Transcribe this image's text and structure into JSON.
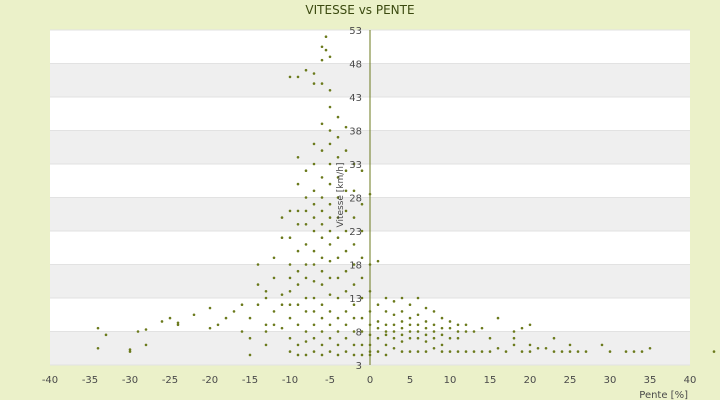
{
  "chart_data": {
    "type": "scatter",
    "title": "VITESSE vs PENTE",
    "xlabel": "Pente [%]",
    "ylabel": "Vitesse [km/h]",
    "xlim": [
      -40,
      40
    ],
    "ylim": [
      3,
      53
    ],
    "xticks": [
      "-40",
      "-35",
      "-30",
      "-25",
      "-20",
      "-15",
      "-10",
      "-5",
      "0",
      "5",
      "10",
      "15",
      "20",
      "25",
      "30",
      "35",
      "40"
    ],
    "yticks": [
      "3",
      "8",
      "13",
      "18",
      "23",
      "28",
      "33",
      "38",
      "43",
      "48",
      "53"
    ],
    "grid": "horizontal bands",
    "colors": {
      "background": "#ebf1c9",
      "band": "#efefef",
      "plot": "#ffffff",
      "point": "#6b7a1c",
      "axis": "#6b7a1c"
    },
    "series": [
      {
        "points": [
          [
            -34,
            8.5
          ],
          [
            -34,
            5.5
          ],
          [
            -33,
            7.5
          ],
          [
            -30,
            5.3
          ],
          [
            -30,
            5.0
          ],
          [
            -29,
            8.0
          ],
          [
            -28,
            6.0
          ],
          [
            -28,
            8.3
          ],
          [
            -26,
            9.5
          ],
          [
            -25,
            10.0
          ],
          [
            -24,
            9.0
          ],
          [
            -24,
            9.3
          ],
          [
            -22,
            10.5
          ],
          [
            -20,
            11.5
          ],
          [
            -20,
            8.5
          ],
          [
            -19,
            9.0
          ],
          [
            -18,
            10.0
          ],
          [
            -17,
            11.0
          ],
          [
            -16,
            12.0
          ],
          [
            -16,
            8.0
          ],
          [
            -15,
            7.0
          ],
          [
            -15,
            10.0
          ],
          [
            -15,
            4.5
          ],
          [
            -14,
            12.0
          ],
          [
            -14,
            15.0
          ],
          [
            -14,
            18.0
          ],
          [
            -13,
            14.0
          ],
          [
            -13,
            13.0
          ],
          [
            -13,
            6.0
          ],
          [
            -13,
            9.0
          ],
          [
            -13,
            8.0
          ],
          [
            -12,
            9.0
          ],
          [
            -12,
            11.0
          ],
          [
            -12,
            16.0
          ],
          [
            -12,
            19.0
          ],
          [
            -11,
            13.5
          ],
          [
            -11,
            8.5
          ],
          [
            -11,
            12.0
          ],
          [
            -11,
            22.0
          ],
          [
            -11,
            25.0
          ],
          [
            -10,
            26.0
          ],
          [
            -10,
            22.0
          ],
          [
            -10,
            18.0
          ],
          [
            -10,
            16.0
          ],
          [
            -10,
            14.0
          ],
          [
            -10,
            12.0
          ],
          [
            -10,
            10.0
          ],
          [
            -10,
            7.0
          ],
          [
            -10,
            5.0
          ],
          [
            -10,
            46.0
          ],
          [
            -9,
            46.0
          ],
          [
            -9,
            34.0
          ],
          [
            -9,
            30.0
          ],
          [
            -9,
            26.0
          ],
          [
            -9,
            24.0
          ],
          [
            -9,
            20.0
          ],
          [
            -9,
            17.0
          ],
          [
            -9,
            15.0
          ],
          [
            -9,
            12.0
          ],
          [
            -9,
            9.0
          ],
          [
            -9,
            6.0
          ],
          [
            -9,
            4.5
          ],
          [
            -8,
            47.0
          ],
          [
            -8,
            32.0
          ],
          [
            -8,
            28.0
          ],
          [
            -8,
            26.0
          ],
          [
            -8,
            24.0
          ],
          [
            -8,
            21.0
          ],
          [
            -8,
            18.0
          ],
          [
            -8,
            16.0
          ],
          [
            -8,
            13.0
          ],
          [
            -8,
            11.0
          ],
          [
            -8,
            8.0
          ],
          [
            -8,
            6.5
          ],
          [
            -8,
            4.5
          ],
          [
            -7,
            46.5
          ],
          [
            -7,
            45.0
          ],
          [
            -7,
            36.0
          ],
          [
            -7,
            33.0
          ],
          [
            -7,
            29.0
          ],
          [
            -7,
            27.0
          ],
          [
            -7,
            25.0
          ],
          [
            -7,
            23.0
          ],
          [
            -7,
            20.0
          ],
          [
            -7,
            18.0
          ],
          [
            -7,
            15.5
          ],
          [
            -7,
            13.0
          ],
          [
            -7,
            11.0
          ],
          [
            -7,
            9.0
          ],
          [
            -7,
            7.0
          ],
          [
            -7,
            5.0
          ],
          [
            -6,
            50.5
          ],
          [
            -6,
            48.5
          ],
          [
            -6,
            45.0
          ],
          [
            -6,
            39.0
          ],
          [
            -6,
            35.0
          ],
          [
            -6,
            31.0
          ],
          [
            -6,
            28.0
          ],
          [
            -6,
            26.0
          ],
          [
            -6,
            24.0
          ],
          [
            -6,
            22.0
          ],
          [
            -6,
            19.0
          ],
          [
            -6,
            17.0
          ],
          [
            -6,
            15.0
          ],
          [
            -6,
            12.0
          ],
          [
            -6,
            10.0
          ],
          [
            -6,
            8.0
          ],
          [
            -6,
            6.0
          ],
          [
            -6,
            4.5
          ],
          [
            -5.5,
            52.0
          ],
          [
            -5.5,
            50.0
          ],
          [
            -5,
            49.0
          ],
          [
            -5,
            44.0
          ],
          [
            -5,
            41.5
          ],
          [
            -5,
            38.0
          ],
          [
            -5,
            36.0
          ],
          [
            -5,
            33.0
          ],
          [
            -5,
            30.0
          ],
          [
            -5,
            27.0
          ],
          [
            -5,
            25.0
          ],
          [
            -5,
            23.0
          ],
          [
            -5,
            21.0
          ],
          [
            -5,
            18.5
          ],
          [
            -5,
            16.0
          ],
          [
            -5,
            13.5
          ],
          [
            -5,
            11.0
          ],
          [
            -5,
            9.0
          ],
          [
            -5,
            7.0
          ],
          [
            -5,
            5.0
          ],
          [
            -4,
            40.0
          ],
          [
            -4,
            37.0
          ],
          [
            -4,
            34.0
          ],
          [
            -4,
            31.0
          ],
          [
            -4,
            28.0
          ],
          [
            -4,
            25.0
          ],
          [
            -4,
            22.0
          ],
          [
            -4,
            19.0
          ],
          [
            -4,
            16.0
          ],
          [
            -4,
            13.0
          ],
          [
            -4,
            10.0
          ],
          [
            -4,
            8.0
          ],
          [
            -4,
            6.0
          ],
          [
            -4,
            4.5
          ],
          [
            -3,
            38.5
          ],
          [
            -3,
            35.0
          ],
          [
            -3,
            32.0
          ],
          [
            -3,
            29.0
          ],
          [
            -3,
            26.0
          ],
          [
            -3,
            23.0
          ],
          [
            -3,
            20.0
          ],
          [
            -3,
            17.0
          ],
          [
            -3,
            14.0
          ],
          [
            -3,
            11.0
          ],
          [
            -3,
            9.0
          ],
          [
            -3,
            7.0
          ],
          [
            -3,
            5.0
          ],
          [
            -2,
            33.0
          ],
          [
            -2,
            29.0
          ],
          [
            -2,
            25.0
          ],
          [
            -2,
            21.0
          ],
          [
            -2,
            18.0
          ],
          [
            -2,
            15.0
          ],
          [
            -2,
            12.0
          ],
          [
            -2,
            10.0
          ],
          [
            -2,
            8.0
          ],
          [
            -2,
            6.0
          ],
          [
            -2,
            4.5
          ],
          [
            -1,
            32.0
          ],
          [
            -1,
            27.0
          ],
          [
            -1,
            23.0
          ],
          [
            -1,
            19.0
          ],
          [
            -1,
            16.0
          ],
          [
            -1,
            13.0
          ],
          [
            -1,
            10.0
          ],
          [
            -1,
            8.0
          ],
          [
            -1,
            6.0
          ],
          [
            -1,
            4.5
          ],
          [
            0,
            28.5
          ],
          [
            0,
            18.0
          ],
          [
            0,
            14.0
          ],
          [
            0,
            11.0
          ],
          [
            0,
            9.0
          ],
          [
            0,
            7.5
          ],
          [
            0,
            6.0
          ],
          [
            0,
            5.0
          ],
          [
            0,
            4.5
          ],
          [
            1,
            18.5
          ],
          [
            1,
            12.0
          ],
          [
            1,
            9.5
          ],
          [
            1,
            8.5
          ],
          [
            1,
            7.0
          ],
          [
            1,
            5.0
          ],
          [
            2,
            13.0
          ],
          [
            2,
            11.0
          ],
          [
            2,
            9.0
          ],
          [
            2,
            8.0
          ],
          [
            2,
            7.5
          ],
          [
            2,
            6.0
          ],
          [
            2,
            4.5
          ],
          [
            3,
            12.5
          ],
          [
            3,
            10.5
          ],
          [
            3,
            9.0
          ],
          [
            3,
            8.0
          ],
          [
            3,
            7.0
          ],
          [
            3,
            5.5
          ],
          [
            4,
            13.0
          ],
          [
            4,
            11.0
          ],
          [
            4,
            9.5
          ],
          [
            4,
            8.5
          ],
          [
            4,
            7.5
          ],
          [
            4,
            6.5
          ],
          [
            4,
            5.0
          ],
          [
            5,
            12.0
          ],
          [
            5,
            10.0
          ],
          [
            5,
            9.0
          ],
          [
            5,
            8.0
          ],
          [
            5,
            7.0
          ],
          [
            5,
            5.0
          ],
          [
            6,
            13.0
          ],
          [
            6,
            10.5
          ],
          [
            6,
            9.0
          ],
          [
            6,
            8.0
          ],
          [
            6,
            7.0
          ],
          [
            6,
            5.0
          ],
          [
            7,
            11.5
          ],
          [
            7,
            9.5
          ],
          [
            7,
            8.5
          ],
          [
            7,
            7.5
          ],
          [
            7,
            6.5
          ],
          [
            7,
            5.0
          ],
          [
            8,
            11.0
          ],
          [
            8,
            9.0
          ],
          [
            8,
            8.0
          ],
          [
            8,
            7.0
          ],
          [
            8,
            5.5
          ],
          [
            9,
            10.0
          ],
          [
            9,
            8.5
          ],
          [
            9,
            7.5
          ],
          [
            9,
            6.0
          ],
          [
            9,
            5.0
          ],
          [
            10,
            9.5
          ],
          [
            10,
            8.5
          ],
          [
            10,
            7.0
          ],
          [
            10,
            5.0
          ],
          [
            11,
            9.0
          ],
          [
            11,
            8.0
          ],
          [
            11,
            7.0
          ],
          [
            11,
            5.0
          ],
          [
            12,
            9.0
          ],
          [
            12,
            8.0
          ],
          [
            12,
            5.0
          ],
          [
            13,
            8.0
          ],
          [
            13,
            5.0
          ],
          [
            14,
            8.5
          ],
          [
            14,
            5.0
          ],
          [
            15,
            7.0
          ],
          [
            15,
            5.0
          ],
          [
            16,
            10.0
          ],
          [
            16,
            5.5
          ],
          [
            17,
            5.0
          ],
          [
            18,
            8.0
          ],
          [
            18,
            7.0
          ],
          [
            18,
            6.0
          ],
          [
            19,
            8.5
          ],
          [
            19,
            5.0
          ],
          [
            20,
            9.0
          ],
          [
            20,
            6.0
          ],
          [
            20,
            5.0
          ],
          [
            21,
            5.5
          ],
          [
            22,
            5.5
          ],
          [
            23,
            7.0
          ],
          [
            23,
            5.0
          ],
          [
            24,
            5.0
          ],
          [
            25,
            6.0
          ],
          [
            25,
            5.0
          ],
          [
            26,
            5.0
          ],
          [
            27,
            5.0
          ],
          [
            29,
            6.0
          ],
          [
            30,
            5.0
          ],
          [
            32,
            5.0
          ],
          [
            33,
            5.0
          ],
          [
            34,
            5.0
          ],
          [
            35,
            5.5
          ],
          [
            43,
            5.0
          ]
        ]
      }
    ]
  }
}
